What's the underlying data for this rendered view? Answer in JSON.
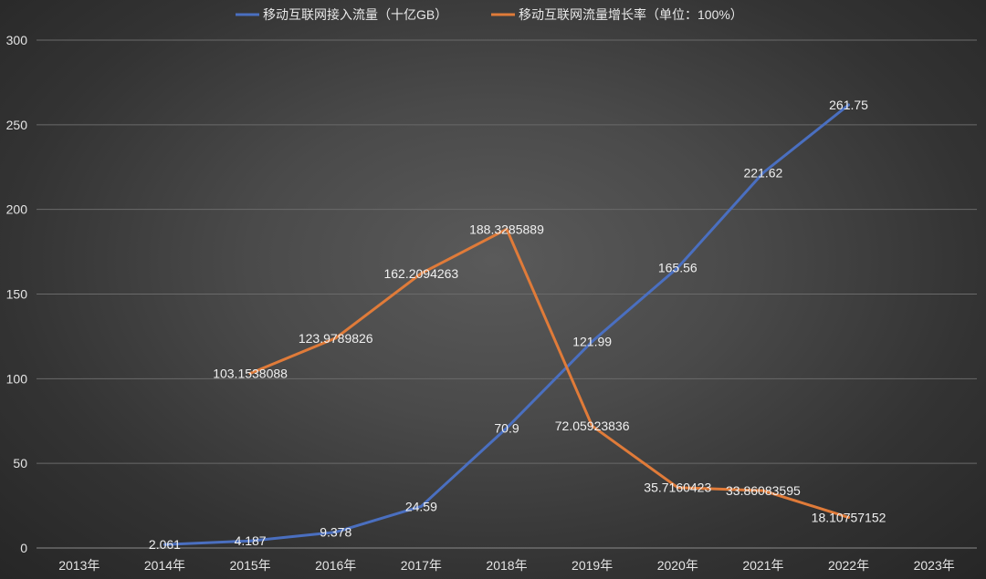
{
  "chart_data": {
    "type": "line",
    "title": "",
    "xlabel": "",
    "ylabel": "",
    "categories": [
      "2013年",
      "2014年",
      "2015年",
      "2016年",
      "2017年",
      "2018年",
      "2019年",
      "2020年",
      "2021年",
      "2022年",
      "2023年"
    ],
    "ylim": [
      0,
      300
    ],
    "yticks": [
      "0",
      "50",
      "100",
      "150",
      "200",
      "250",
      "300"
    ],
    "grid": true,
    "legend_position": "top",
    "series": [
      {
        "name": "移动互联网接入流量（十亿GB）",
        "color": "#4a6fc0",
        "values": [
          null,
          2.061,
          4.187,
          9.378,
          24.59,
          70.9,
          121.99,
          165.56,
          221.62,
          261.75,
          null
        ],
        "labels": [
          null,
          "2.061",
          "4.187",
          "9.378",
          "24.59",
          "70.9",
          "121.99",
          "165.56",
          "221.62",
          "261.75",
          null
        ]
      },
      {
        "name": "移动互联网流量增长率（单位：100%）",
        "color": "#e07b39",
        "values": [
          null,
          null,
          103.1538088,
          123.9789826,
          162.2094263,
          188.3285889,
          72.05923836,
          35.7160423,
          33.86083595,
          18.10757152,
          null
        ],
        "labels": [
          null,
          null,
          "103.1538088",
          "123.9789826",
          "162.2094263",
          "188.3285889",
          "72.05923836",
          "35.7160423",
          "33.86083595",
          "18.10757152",
          null
        ]
      }
    ]
  }
}
